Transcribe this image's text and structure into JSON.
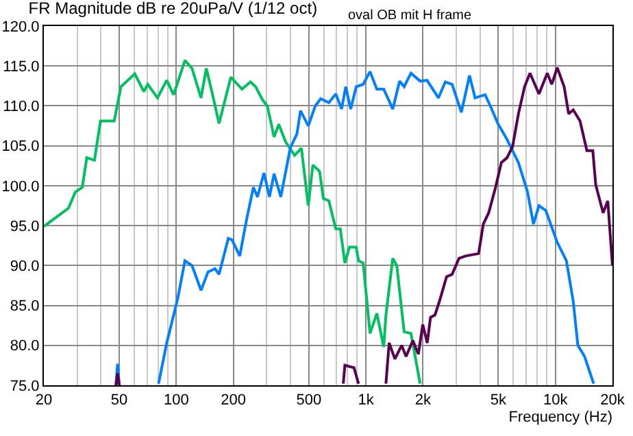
{
  "chart_data": {
    "type": "line",
    "title": "FR Magnitude dB re 20uPa/V (1/12 oct)",
    "annotations": [
      "oval OB mit H frame"
    ],
    "xlabel": "Frequency (Hz)",
    "log": "x",
    "grid": true,
    "marker": "none",
    "line_style": "solid",
    "xlim": [
      20,
      20000
    ],
    "xticks": [
      20,
      50,
      100,
      200,
      500,
      {
        "value": 1000,
        "label": "1k"
      },
      {
        "value": 2000,
        "label": "2k"
      },
      {
        "value": 5000,
        "label": "5k"
      },
      {
        "value": 10000,
        "label": "10k"
      },
      {
        "value": 20000,
        "label": "20k"
      }
    ],
    "ylim": [
      75,
      120
    ],
    "yticks": [
      {
        "value": 75,
        "label": "75.0"
      },
      {
        "value": 80,
        "label": "80.0"
      },
      {
        "value": 85,
        "label": "85.0"
      },
      {
        "value": 90,
        "label": "90.0"
      },
      {
        "value": 95,
        "label": "95.0"
      },
      {
        "value": 100,
        "label": "100.0"
      },
      {
        "value": 105,
        "label": "105.0"
      },
      {
        "value": 110,
        "label": "110.0"
      },
      {
        "value": 115,
        "label": "115.0"
      },
      {
        "value": 120,
        "label": "120.0"
      }
    ],
    "series": [
      {
        "color": "#00c060",
        "x": [
          20,
          27,
          29.3,
          31.9,
          33.7,
          37,
          39.8,
          47,
          51,
          60.4,
          67.4,
          70.7,
          79.6,
          89,
          96.8,
          111,
          121,
          135,
          144,
          155,
          168,
          194,
          222,
          246,
          262,
          286,
          302,
          328,
          347,
          377,
          421,
          457,
          497,
          525,
          570,
          597,
          638,
          694,
          733,
          775,
          819,
          889,
          915,
          968,
          1052,
          1143,
          1242,
          1276,
          1387,
          1456,
          1592,
          1730,
          1933
        ],
        "values": [
          94.9,
          97.2,
          99.2,
          99.8,
          103.5,
          103.2,
          108.1,
          108.1,
          112.4,
          114,
          111.8,
          112.7,
          111,
          113.2,
          111.4,
          115.7,
          114.7,
          111,
          114.7,
          111.5,
          107.8,
          113.6,
          112.1,
          113,
          112.4,
          110.7,
          110,
          106.1,
          107.7,
          105.5,
          103.8,
          104.7,
          97.5,
          102.6,
          101.8,
          98.4,
          98.1,
          94.6,
          94.6,
          90.3,
          92.3,
          92.3,
          90.6,
          90.3,
          81.5,
          84,
          79.8,
          83.8,
          90.9,
          90,
          81.7,
          81.5,
          75.2
        ]
      },
      {
        "color": "#0080ff",
        "x": [
          48,
          49,
          50,
          null,
          80.6,
          89,
          96.8,
          102,
          111,
          121,
          135,
          147,
          160,
          168,
          188,
          197,
          216,
          235,
          255,
          268,
          290,
          310,
          328,
          356,
          399,
          433,
          452,
          497,
          541,
          578,
          638,
          694,
          745,
          783,
          832,
          889,
          968,
          1052,
          1143,
          1242,
          1387,
          1507,
          1592,
          1730,
          1933,
          2103,
          2416,
          2625,
          2852,
          3191,
          3525,
          3768,
          4256,
          4574,
          4969,
          5556,
          6382,
          7132,
          7662,
          8191,
          8895,
          10230,
          11430,
          12420,
          13140,
          14260,
          15920
        ],
        "values": [
          75,
          77.7,
          75,
          null,
          75.2,
          80.3,
          83.8,
          86,
          90.6,
          90,
          86.9,
          89.2,
          89.6,
          88.9,
          93.4,
          93.2,
          91.2,
          95.8,
          99.8,
          98.6,
          101.6,
          98.6,
          101.5,
          98.6,
          104.7,
          106.5,
          109.4,
          107.5,
          110,
          110.9,
          110.4,
          111.5,
          109.6,
          112.4,
          109.6,
          112.4,
          112.7,
          114.3,
          112.1,
          112.1,
          109.6,
          113.1,
          112.4,
          114.1,
          113.1,
          113.2,
          111,
          113,
          112.7,
          109.2,
          113.8,
          111,
          111.4,
          109.8,
          107.8,
          105.8,
          102.9,
          99.2,
          95.2,
          97.5,
          96.9,
          92.9,
          90.6,
          85.5,
          80,
          78.6,
          75.2
        ]
      },
      {
        "color": "#5a0050",
        "x": [
          48,
          49,
          50,
          null,
          760,
          775,
          866,
          915,
          null,
          1276,
          1327,
          1423,
          1545,
          1629,
          1770,
          1892,
          1996,
          2108,
          2193,
          2314,
          2444,
          2666,
          2852,
          3100,
          3363,
          3936,
          4165,
          4446,
          4834,
          5187,
          5556,
          5942,
          6382,
          6877,
          7345,
          8191,
          9060,
          9570,
          10230,
          11120,
          11750,
          12420,
          13490,
          14660,
          15750,
          16330,
          17860,
          18900,
          20000
        ],
        "values": [
          75,
          76.5,
          75,
          null,
          75.2,
          77.5,
          77.2,
          75.2,
          null,
          75.2,
          80.3,
          78.3,
          80,
          78.6,
          80.6,
          78.9,
          82.6,
          80.3,
          83.5,
          83.8,
          85.5,
          88.6,
          88.9,
          90.9,
          91.2,
          91.5,
          95.2,
          96.6,
          99.8,
          102.9,
          103.5,
          104.9,
          109,
          112.4,
          114.1,
          111.5,
          114.1,
          112.7,
          114.8,
          112.4,
          109,
          109.5,
          108.1,
          104.4,
          104.4,
          100.1,
          96.6,
          98.1,
          90
        ]
      }
    ]
  }
}
